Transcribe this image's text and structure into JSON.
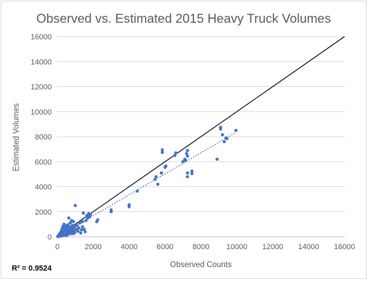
{
  "chart_data": {
    "type": "scatter",
    "title": "Observed vs. Estimated 2015 Heavy Truck Volumes",
    "xlabel": "Observed Counts",
    "ylabel": "Estimated Volumes",
    "xlim": [
      0,
      16000
    ],
    "ylim": [
      0,
      16000
    ],
    "xticks": [
      "0",
      "2000",
      "4000",
      "6000",
      "8000",
      "10000",
      "12000",
      "14000",
      "16000"
    ],
    "yticks": [
      "0",
      "2000",
      "4000",
      "6000",
      "8000",
      "10000",
      "12000",
      "14000",
      "16000"
    ],
    "grid": "horizontal",
    "annotation": "R² = 0.9524",
    "reference_line": {
      "from": [
        0,
        0
      ],
      "to": [
        16000,
        16000
      ],
      "color": "#000000"
    },
    "trendline": {
      "from": [
        0,
        0
      ],
      "to": [
        9900,
        8300
      ],
      "color": "#4472c4",
      "style": "dotted"
    },
    "marker_color": "#4472c4",
    "points": [
      [
        20,
        30
      ],
      [
        40,
        60
      ],
      [
        60,
        20
      ],
      [
        80,
        120
      ],
      [
        100,
        80
      ],
      [
        120,
        200
      ],
      [
        140,
        100
      ],
      [
        160,
        300
      ],
      [
        180,
        150
      ],
      [
        200,
        50
      ],
      [
        210,
        400
      ],
      [
        230,
        250
      ],
      [
        250,
        600
      ],
      [
        260,
        120
      ],
      [
        280,
        350
      ],
      [
        300,
        800
      ],
      [
        310,
        200
      ],
      [
        330,
        500
      ],
      [
        350,
        90
      ],
      [
        370,
        1000
      ],
      [
        390,
        300
      ],
      [
        400,
        650
      ],
      [
        420,
        150
      ],
      [
        440,
        450
      ],
      [
        460,
        850
      ],
      [
        480,
        250
      ],
      [
        500,
        550
      ],
      [
        520,
        100
      ],
      [
        540,
        700
      ],
      [
        560,
        380
      ],
      [
        580,
        950
      ],
      [
        600,
        200
      ],
      [
        620,
        500
      ],
      [
        640,
        1500
      ],
      [
        660,
        300
      ],
      [
        680,
        800
      ],
      [
        700,
        600
      ],
      [
        720,
        1100
      ],
      [
        740,
        400
      ],
      [
        760,
        250
      ],
      [
        780,
        700
      ],
      [
        800,
        1300
      ],
      [
        820,
        500
      ],
      [
        840,
        900
      ],
      [
        860,
        300
      ],
      [
        880,
        650
      ],
      [
        900,
        1200
      ],
      [
        920,
        450
      ],
      [
        950,
        800
      ],
      [
        980,
        350
      ],
      [
        1000,
        2500
      ],
      [
        1050,
        600
      ],
      [
        1100,
        900
      ],
      [
        1150,
        450
      ],
      [
        1200,
        700
      ],
      [
        1250,
        1100
      ],
      [
        1300,
        300
      ],
      [
        1350,
        550
      ],
      [
        1400,
        800
      ],
      [
        1400,
        1200
      ],
      [
        1450,
        1900
      ],
      [
        1500,
        600
      ],
      [
        1550,
        400
      ],
      [
        1600,
        1300
      ],
      [
        1650,
        1700
      ],
      [
        1700,
        1500
      ],
      [
        1750,
        1850
      ],
      [
        1800,
        1600
      ],
      [
        1850,
        1750
      ],
      [
        900,
        250
      ],
      [
        2200,
        1200
      ],
      [
        2250,
        1350
      ],
      [
        3000,
        2000
      ],
      [
        3000,
        2150
      ],
      [
        4000,
        2400
      ],
      [
        4000,
        2550
      ],
      [
        4450,
        3650
      ],
      [
        5450,
        4600
      ],
      [
        5500,
        4800
      ],
      [
        5600,
        4200
      ],
      [
        5800,
        5100
      ],
      [
        5850,
        6750
      ],
      [
        5850,
        6950
      ],
      [
        6000,
        5550
      ],
      [
        6050,
        5650
      ],
      [
        6550,
        6500
      ],
      [
        6600,
        6700
      ],
      [
        7000,
        6000
      ],
      [
        7100,
        6200
      ],
      [
        7150,
        6100
      ],
      [
        7200,
        6650
      ],
      [
        7250,
        6450
      ],
      [
        7250,
        6900
      ],
      [
        7250,
        4800
      ],
      [
        7250,
        5100
      ],
      [
        7500,
        5050
      ],
      [
        7500,
        5250
      ],
      [
        8900,
        6200
      ],
      [
        9100,
        8600
      ],
      [
        9100,
        8750
      ],
      [
        9200,
        8150
      ],
      [
        9300,
        7600
      ],
      [
        9400,
        7900
      ],
      [
        9450,
        7850
      ],
      [
        9950,
        8500
      ]
    ]
  }
}
